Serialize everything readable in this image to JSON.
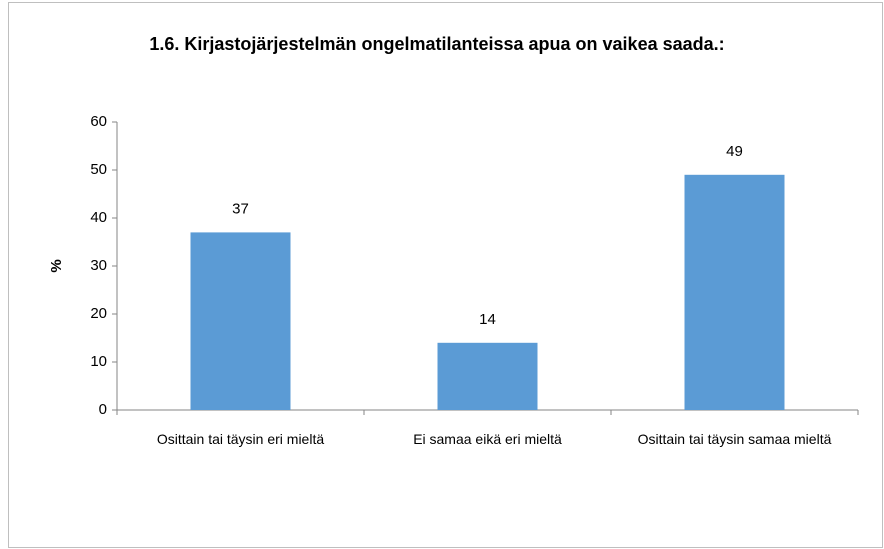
{
  "chart_data": {
    "type": "bar",
    "title": "1.6. Kirjastojärjestelmän ongelmatilanteissa apua on vaikea saada.:",
    "ylabel": "%",
    "categories": [
      "Osittain tai täysin eri mieltä",
      "Ei samaa eikä eri mieltä",
      "Osittain tai täysin samaa mieltä"
    ],
    "values": [
      37,
      14,
      49
    ],
    "color": "#5b9bd5",
    "ylim": [
      0,
      60
    ],
    "yticks": [
      0,
      10,
      20,
      30,
      40,
      50,
      60
    ],
    "grid": false
  }
}
